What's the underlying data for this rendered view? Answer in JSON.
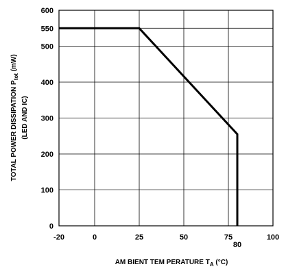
{
  "chart_data": {
    "type": "line",
    "xlabel_main": "AM BIENT TEM PERATURE T",
    "xlabel_sub": "A",
    "xlabel_unit": " (°C)",
    "ylabel_line1_main": "TOTAL POWER DISSIPATION P",
    "ylabel_line1_sub": "tot",
    "ylabel_line1_unit": " (mW)",
    "ylabel_line2": "(LED AND IC)",
    "xlim": [
      -20,
      100
    ],
    "ylim": [
      0,
      600
    ],
    "x_ticks": [
      {
        "value": -20,
        "label": "-20"
      },
      {
        "value": 0,
        "label": "0"
      },
      {
        "value": 25,
        "label": "25"
      },
      {
        "value": 50,
        "label": "50"
      },
      {
        "value": 75,
        "label": "75"
      },
      {
        "value": 100,
        "label": "100"
      }
    ],
    "x_extra_tick": {
      "value": 80,
      "label": "80"
    },
    "y_ticks": [
      {
        "value": 0,
        "label": "0"
      },
      {
        "value": 100,
        "label": "100"
      },
      {
        "value": 200,
        "label": "200"
      },
      {
        "value": 300,
        "label": "300"
      },
      {
        "value": 400,
        "label": "400"
      },
      {
        "value": 500,
        "label": "500"
      },
      {
        "value": 550,
        "label": "550"
      },
      {
        "value": 600,
        "label": "600"
      }
    ],
    "grid": true,
    "series": [
      {
        "points": [
          {
            "x": -20,
            "y": 550
          },
          {
            "x": 25,
            "y": 550
          },
          {
            "x": 80,
            "y": 255
          },
          {
            "x": 80,
            "y": 0
          }
        ]
      }
    ]
  }
}
